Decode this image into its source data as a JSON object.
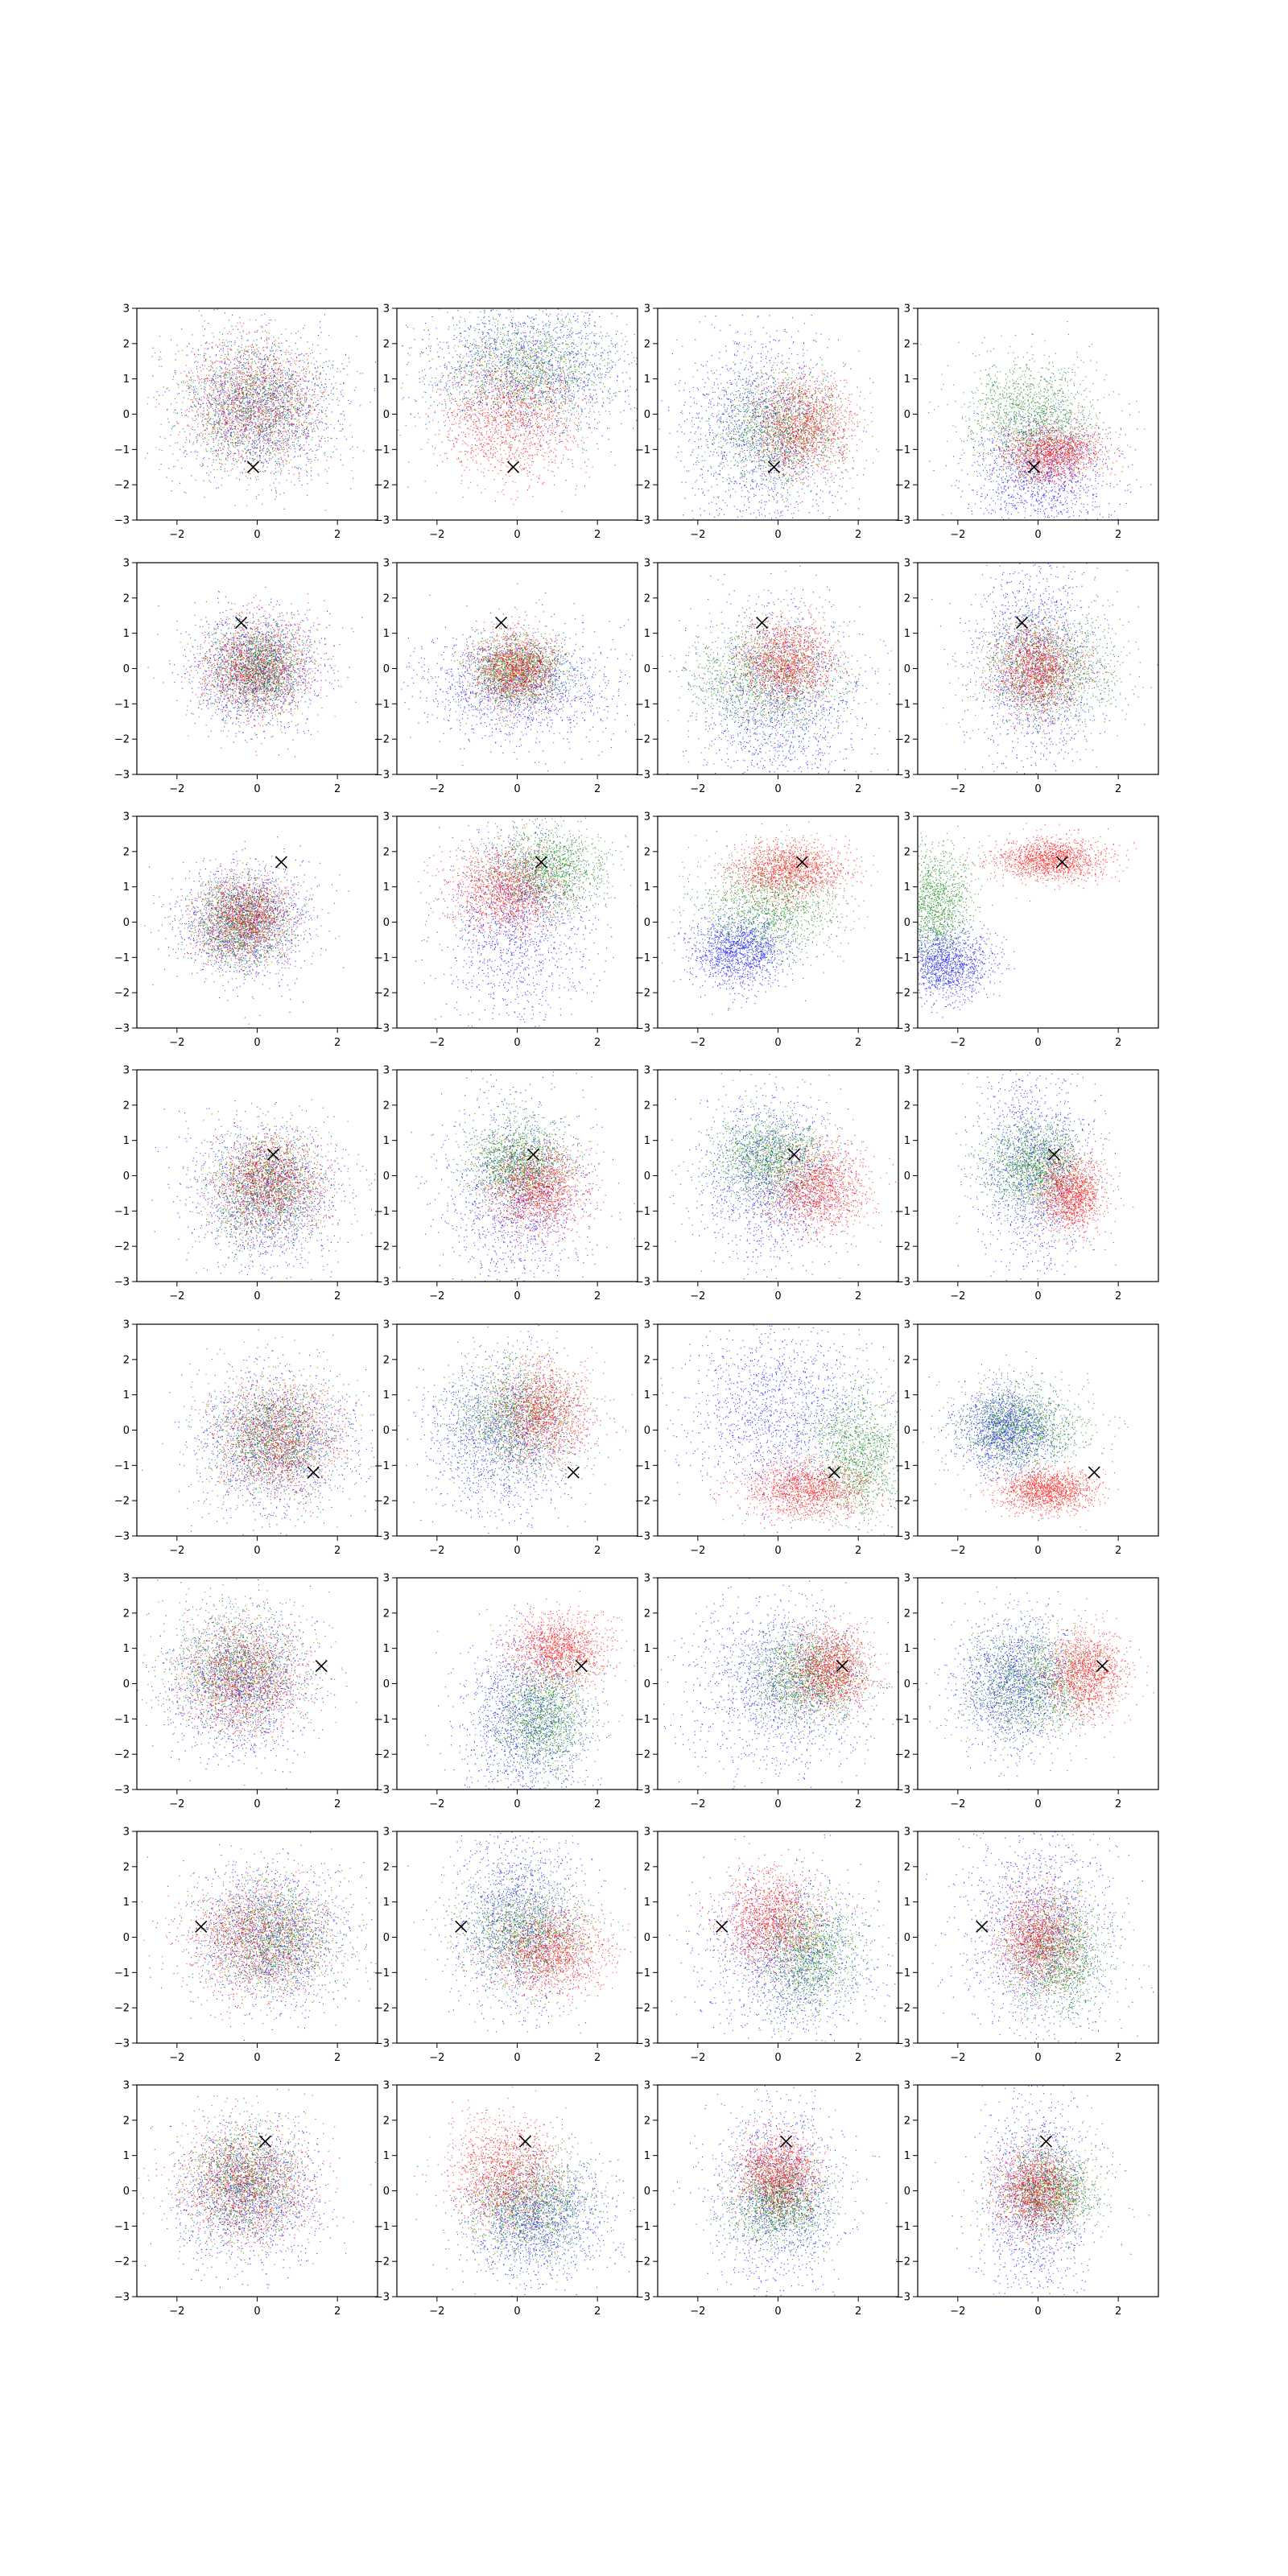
{
  "figure": {
    "rows": 8,
    "cols": 4,
    "background": "#ffffff"
  },
  "chart_data": {
    "type": "scatter",
    "xlim": [
      -3,
      3
    ],
    "ylim": [
      -3,
      3
    ],
    "xticks": [
      -2,
      0,
      2
    ],
    "yticks": [
      -3,
      -2,
      -1,
      0,
      1,
      2,
      3
    ],
    "xtick_labels": [
      "−2",
      "0",
      "2"
    ],
    "ytick_labels": [
      "−3",
      "−2",
      "−1",
      "0",
      "1",
      "2",
      "3"
    ],
    "grid": false,
    "legend": "none",
    "marker_symbol": "×",
    "series_colors": {
      "blue": "#0000ff",
      "green": "#008000",
      "red": "#ff0000"
    },
    "points_per_series": 1400,
    "panel_rows": [
      {
        "marker": [
          -0.1,
          -1.5
        ],
        "panels": [
          {
            "blue": [
              0.0,
              0.2,
              1.0,
              1.0
            ],
            "green": [
              0.0,
              0.2,
              0.9,
              0.9
            ],
            "red": [
              -0.1,
              0.3,
              0.9,
              0.9
            ]
          },
          {
            "blue": [
              0.3,
              1.3,
              1.3,
              1.0
            ],
            "green": [
              0.3,
              1.3,
              1.1,
              0.8
            ],
            "red": [
              -0.2,
              -0.1,
              0.9,
              0.9
            ]
          },
          {
            "blue": [
              -0.4,
              -0.5,
              1.0,
              1.4
            ],
            "green": [
              0.0,
              -0.4,
              0.8,
              0.8
            ],
            "red": [
              0.6,
              -0.3,
              0.6,
              0.7
            ]
          },
          {
            "blue": [
              0.1,
              -1.6,
              0.9,
              0.9
            ],
            "green": [
              -0.2,
              0.0,
              0.8,
              0.8
            ],
            "red": [
              0.4,
              -1.1,
              0.6,
              0.4
            ]
          }
        ]
      },
      {
        "marker": [
          -0.4,
          1.3
        ],
        "panels": [
          {
            "blue": [
              0.0,
              0.0,
              0.8,
              0.8
            ],
            "green": [
              0.0,
              0.0,
              0.6,
              0.6
            ],
            "red": [
              0.0,
              0.0,
              0.7,
              0.7
            ]
          },
          {
            "blue": [
              0.0,
              -0.5,
              1.3,
              0.8
            ],
            "green": [
              0.0,
              -0.1,
              0.6,
              0.5
            ],
            "red": [
              0.0,
              0.0,
              0.5,
              0.5
            ]
          },
          {
            "blue": [
              0.0,
              -1.0,
              1.0,
              1.4
            ],
            "green": [
              -0.3,
              -0.3,
              1.0,
              0.8
            ],
            "red": [
              0.2,
              0.2,
              0.6,
              0.6
            ]
          },
          {
            "blue": [
              -0.1,
              0.2,
              0.8,
              1.5
            ],
            "green": [
              0.3,
              0.0,
              0.9,
              0.8
            ],
            "red": [
              0.0,
              0.0,
              0.5,
              0.6
            ]
          }
        ]
      },
      {
        "marker": [
          0.6,
          1.7
        ],
        "panels": [
          {
            "blue": [
              -0.3,
              0.0,
              0.8,
              0.8
            ],
            "green": [
              -0.4,
              0.0,
              0.6,
              0.6
            ],
            "red": [
              -0.3,
              0.1,
              0.6,
              0.6
            ]
          },
          {
            "blue": [
              0.0,
              0.0,
              0.9,
              1.3
            ],
            "green": [
              0.8,
              1.5,
              0.7,
              0.6
            ],
            "red": [
              -0.3,
              0.9,
              0.7,
              0.6
            ]
          },
          {
            "blue": [
              -1.0,
              -0.8,
              0.6,
              0.5
            ],
            "green": [
              -0.2,
              0.5,
              0.9,
              0.7
            ],
            "red": [
              0.3,
              1.5,
              0.7,
              0.4
            ]
          },
          {
            "blue": [
              -2.3,
              -1.2,
              0.6,
              0.5
            ],
            "green": [
              -2.6,
              0.5,
              0.5,
              0.8
            ],
            "red": [
              0.3,
              1.8,
              0.7,
              0.3
            ]
          }
        ]
      },
      {
        "marker": [
          0.4,
          0.6
        ],
        "panels": [
          {
            "blue": [
              0.2,
              -0.5,
              0.9,
              1.0
            ],
            "green": [
              0.2,
              -0.3,
              0.7,
              0.8
            ],
            "red": [
              0.3,
              -0.2,
              0.7,
              0.7
            ]
          },
          {
            "blue": [
              0.0,
              -0.5,
              0.9,
              1.3
            ],
            "green": [
              0.0,
              0.4,
              0.6,
              0.6
            ],
            "red": [
              0.5,
              -0.4,
              0.6,
              0.6
            ]
          },
          {
            "blue": [
              -0.2,
              0.0,
              0.9,
              1.2
            ],
            "green": [
              -0.2,
              0.5,
              0.7,
              0.6
            ],
            "red": [
              1.0,
              -0.4,
              0.6,
              0.6
            ]
          },
          {
            "blue": [
              -0.1,
              0.2,
              0.7,
              1.4
            ],
            "green": [
              -0.1,
              0.3,
              0.6,
              0.6
            ],
            "red": [
              0.8,
              -0.5,
              0.4,
              0.5
            ]
          }
        ]
      },
      {
        "marker": [
          1.4,
          -1.2
        ],
        "panels": [
          {
            "blue": [
              0.5,
              -0.3,
              1.0,
              1.0
            ],
            "green": [
              0.4,
              -0.2,
              0.8,
              0.8
            ],
            "red": [
              0.5,
              -0.2,
              0.8,
              0.8
            ]
          },
          {
            "blue": [
              -0.4,
              -0.2,
              0.9,
              1.1
            ],
            "green": [
              -0.1,
              0.4,
              0.8,
              0.8
            ],
            "red": [
              0.6,
              0.5,
              0.6,
              0.7
            ]
          },
          {
            "blue": [
              0.0,
              0.5,
              1.1,
              1.2
            ],
            "green": [
              2.0,
              -0.7,
              0.6,
              0.9
            ],
            "red": [
              0.7,
              -1.7,
              0.8,
              0.4
            ]
          },
          {
            "blue": [
              -0.8,
              0.0,
              0.6,
              0.6
            ],
            "green": [
              -0.4,
              0.1,
              0.8,
              0.6
            ],
            "red": [
              0.2,
              -1.7,
              0.6,
              0.3
            ]
          }
        ]
      },
      {
        "marker": [
          1.6,
          0.5
        ],
        "panels": [
          {
            "blue": [
              -0.4,
              0.0,
              0.9,
              1.0
            ],
            "green": [
              -0.5,
              0.4,
              0.8,
              0.8
            ],
            "red": [
              -0.4,
              0.2,
              0.8,
              0.8
            ]
          },
          {
            "blue": [
              0.2,
              -1.0,
              0.8,
              1.2
            ],
            "green": [
              0.6,
              -1.0,
              0.6,
              0.8
            ],
            "red": [
              1.0,
              1.0,
              0.6,
              0.5
            ]
          },
          {
            "blue": [
              0.0,
              0.0,
              1.1,
              1.2
            ],
            "green": [
              0.7,
              0.2,
              0.7,
              0.7
            ],
            "red": [
              1.3,
              0.4,
              0.5,
              0.6
            ]
          },
          {
            "blue": [
              -0.6,
              0.0,
              0.7,
              0.9
            ],
            "green": [
              -0.2,
              0.0,
              0.8,
              0.8
            ],
            "red": [
              1.2,
              0.3,
              0.5,
              0.6
            ]
          }
        ]
      },
      {
        "marker": [
          -1.4,
          0.3
        ],
        "panels": [
          {
            "blue": [
              0.3,
              0.0,
              1.0,
              1.0
            ],
            "green": [
              0.4,
              0.0,
              0.8,
              0.8
            ],
            "red": [
              0.0,
              0.0,
              0.9,
              0.8
            ]
          },
          {
            "blue": [
              0.0,
              0.5,
              0.8,
              1.3
            ],
            "green": [
              0.1,
              0.2,
              0.8,
              0.8
            ],
            "red": [
              0.8,
              -0.4,
              0.7,
              0.6
            ]
          },
          {
            "blue": [
              0.2,
              -0.5,
              1.1,
              1.2
            ],
            "green": [
              0.8,
              -0.5,
              0.6,
              0.8
            ],
            "red": [
              -0.2,
              0.5,
              0.6,
              0.7
            ]
          },
          {
            "blue": [
              0.0,
              0.2,
              0.9,
              1.5
            ],
            "green": [
              0.5,
              -0.5,
              0.6,
              0.8
            ],
            "red": [
              0.0,
              0.0,
              0.5,
              0.7
            ]
          }
        ]
      },
      {
        "marker": [
          0.2,
          1.4
        ],
        "panels": [
          {
            "blue": [
              -0.2,
              -0.1,
              0.9,
              1.0
            ],
            "green": [
              -0.3,
              0.3,
              0.7,
              0.8
            ],
            "red": [
              -0.3,
              0.2,
              0.8,
              0.8
            ]
          },
          {
            "blue": [
              0.4,
              -0.8,
              0.9,
              0.8
            ],
            "green": [
              0.3,
              -0.4,
              0.8,
              0.8
            ],
            "red": [
              -0.3,
              0.5,
              0.7,
              0.8
            ]
          },
          {
            "blue": [
              0.0,
              -0.2,
              0.8,
              1.3
            ],
            "green": [
              0.0,
              -0.3,
              0.6,
              0.6
            ],
            "red": [
              0.0,
              0.5,
              0.5,
              0.6
            ]
          },
          {
            "blue": [
              -0.1,
              -0.2,
              0.7,
              1.5
            ],
            "green": [
              0.3,
              0.0,
              0.6,
              0.6
            ],
            "red": [
              -0.1,
              0.0,
              0.5,
              0.6
            ]
          }
        ]
      }
    ]
  }
}
